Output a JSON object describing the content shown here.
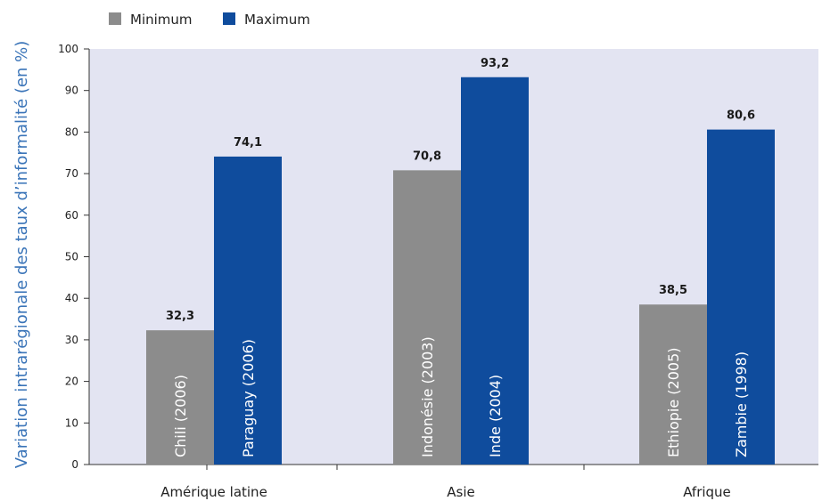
{
  "colors": {
    "plot_background": "#e3e4f2",
    "minimum": "#8c8c8c",
    "maximum": "#0f4c9d",
    "ylabel": "#3a74b8"
  },
  "chart_data": {
    "type": "bar",
    "title": "",
    "xlabel": "",
    "ylabel": "Variation intrarégionale des taux d’informalité (en %)",
    "ylim": [
      0,
      100
    ],
    "yticks": [
      0,
      10,
      20,
      30,
      40,
      50,
      60,
      70,
      80,
      90,
      100
    ],
    "categories": [
      "Amérique latine",
      "Asie",
      "Afrique"
    ],
    "legend_position": "top-left",
    "grid": false,
    "series": [
      {
        "name": "Minimum",
        "values": [
          32.3,
          70.8,
          38.5
        ],
        "value_labels": [
          "32,3",
          "70,8",
          "38,5"
        ],
        "bar_labels": [
          "Chili (2006)",
          "Indonésie (2003)",
          "Ethiopie (2005)"
        ]
      },
      {
        "name": "Maximum",
        "values": [
          74.1,
          93.2,
          80.6
        ],
        "value_labels": [
          "74,1",
          "93,2",
          "80,6"
        ],
        "bar_labels": [
          "Paraguay (2006)",
          "Inde (2004)",
          "Zambie (1998)"
        ]
      }
    ]
  }
}
